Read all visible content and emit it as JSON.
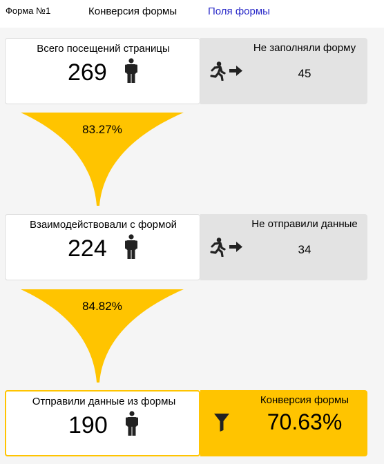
{
  "header": {
    "form_title": "Форма №1",
    "tabs": [
      {
        "label": "Конверсия формы",
        "active": true
      },
      {
        "label": "Поля формы",
        "active": false
      }
    ]
  },
  "colors": {
    "accent": "#ffc400",
    "link": "#2a2ac8",
    "gray_panel": "#e3e3e3",
    "icon": "#222222"
  },
  "stages": [
    {
      "label": "Всего посещений страницы",
      "value": "269",
      "icon": "person-icon",
      "exit_label": "Не заполняли форму",
      "exit_value": "45",
      "exit_icon": "running-exit-icon"
    },
    {
      "label": "Взаимодействовали с формой",
      "value": "224",
      "icon": "person-icon",
      "exit_label": "Не отправили данные",
      "exit_value": "34",
      "exit_icon": "running-exit-icon"
    },
    {
      "label": "Отправили данные из формы",
      "value": "190",
      "icon": "person-icon",
      "conversion_label": "Конверсия формы",
      "conversion_value": "70.63%",
      "conversion_icon": "funnel-icon"
    }
  ],
  "transitions": [
    {
      "percent": "83.27%"
    },
    {
      "percent": "84.82%"
    }
  ]
}
